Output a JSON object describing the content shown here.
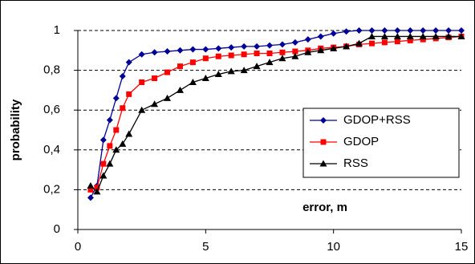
{
  "chart_data": {
    "type": "line",
    "xlabel": "error, m",
    "ylabel": "probability",
    "x": [
      0.5,
      0.75,
      1,
      1.25,
      1.5,
      1.75,
      2,
      2.5,
      3,
      3.5,
      4,
      4.5,
      5,
      5.5,
      6,
      6.5,
      7,
      7.5,
      8,
      8.5,
      9,
      9.5,
      10,
      10.5,
      11,
      11.5,
      12,
      12.5,
      13,
      13.5,
      14,
      14.5,
      15
    ],
    "series": [
      {
        "name": "GDOP+RSS",
        "color": "#000099",
        "marker": "diamond",
        "values": [
          0.16,
          0.22,
          0.45,
          0.55,
          0.66,
          0.77,
          0.84,
          0.88,
          0.89,
          0.895,
          0.9,
          0.905,
          0.905,
          0.91,
          0.915,
          0.92,
          0.92,
          0.925,
          0.93,
          0.94,
          0.955,
          0.97,
          0.985,
          0.995,
          1,
          1,
          1,
          1,
          1,
          1,
          1,
          1,
          1
        ]
      },
      {
        "name": "GDOP",
        "color": "#ff0000",
        "marker": "square",
        "values": [
          0.2,
          0.21,
          0.33,
          0.42,
          0.5,
          0.61,
          0.68,
          0.74,
          0.76,
          0.79,
          0.82,
          0.84,
          0.86,
          0.87,
          0.875,
          0.88,
          0.885,
          0.885,
          0.89,
          0.895,
          0.9,
          0.91,
          0.915,
          0.92,
          0.93,
          0.935,
          0.94,
          0.945,
          0.95,
          0.955,
          0.96,
          0.965,
          0.97
        ]
      },
      {
        "name": "RSS",
        "color": "#000000",
        "marker": "triangle",
        "values": [
          0.22,
          0.19,
          0.27,
          0.33,
          0.4,
          0.43,
          0.48,
          0.6,
          0.63,
          0.66,
          0.7,
          0.74,
          0.76,
          0.78,
          0.795,
          0.8,
          0.82,
          0.84,
          0.86,
          0.87,
          0.89,
          0.9,
          0.91,
          0.92,
          0.935,
          0.97,
          0.97,
          0.97,
          0.97,
          0.97,
          0.97,
          0.97,
          0.97
        ]
      }
    ],
    "xlim": [
      0,
      15
    ],
    "xticks": [
      0,
      5,
      10,
      15
    ],
    "ylim": [
      0,
      1
    ],
    "yticks": [
      0,
      {
        "value": 0.2,
        "label": "0,2"
      },
      {
        "value": 0.4,
        "label": "0,4"
      },
      {
        "value": 0.6,
        "label": "0,6"
      },
      {
        "value": 0.8,
        "label": "0,8"
      },
      1
    ],
    "grid": true,
    "legend": "right"
  }
}
